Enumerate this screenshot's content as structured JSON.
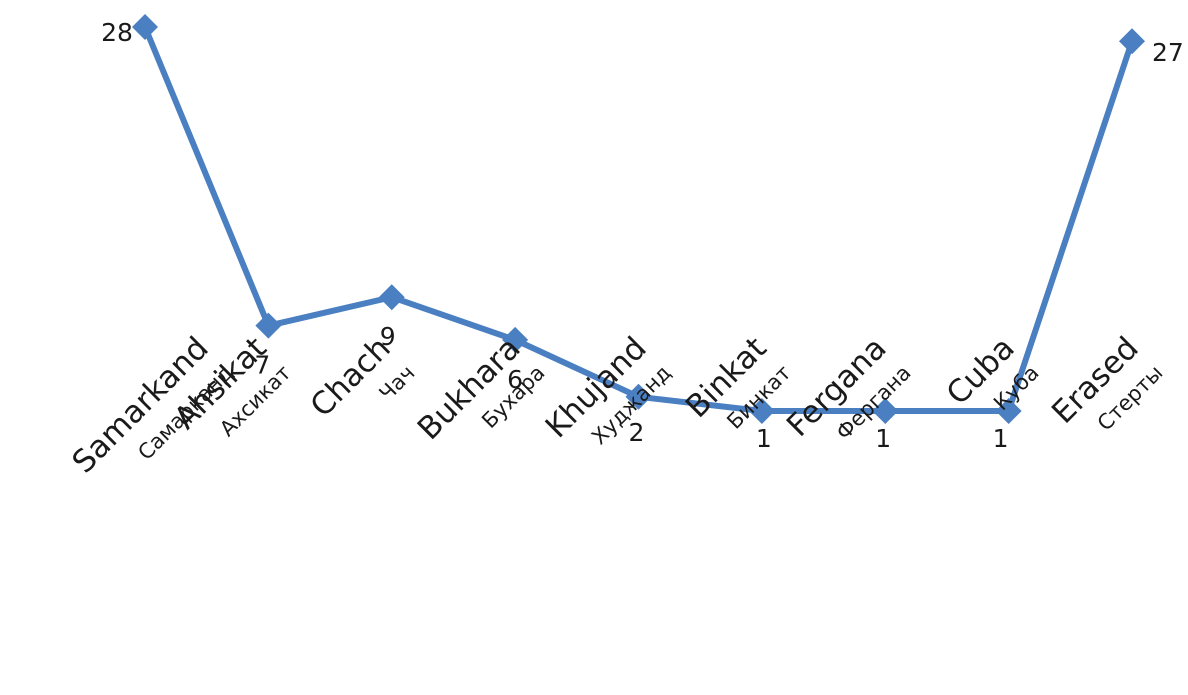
{
  "colors": {
    "series": "#4a7fc1",
    "text": "#1a1a1a",
    "background": "#ffffff"
  },
  "chart_data": {
    "type": "line",
    "categories": [
      {
        "en": "Samarkand",
        "ru": "Самарканд"
      },
      {
        "en": "Ahsikat",
        "ru": "Ахсикат"
      },
      {
        "en": "Chach",
        "ru": "Чач"
      },
      {
        "en": "Bukhara",
        "ru": "Бухара"
      },
      {
        "en": "Khujand",
        "ru": "Худжанд"
      },
      {
        "en": "Binkat",
        "ru": "Бинкат"
      },
      {
        "en": "Fergana",
        "ru": "Фергана"
      },
      {
        "en": "Cuba",
        "ru": "Куба"
      },
      {
        "en": "Erased",
        "ru": "Стерты"
      }
    ],
    "series": [
      {
        "values": [
          28,
          7,
          9,
          6,
          2,
          1,
          1,
          1,
          27
        ],
        "marker": "diamond",
        "data_labels": [
          "28",
          "7",
          "9",
          "6",
          "2",
          "1",
          "1",
          "1",
          "27"
        ]
      }
    ],
    "ylim": [
      0,
      28
    ],
    "grid": false,
    "legend": "none",
    "axes_visible": false
  }
}
